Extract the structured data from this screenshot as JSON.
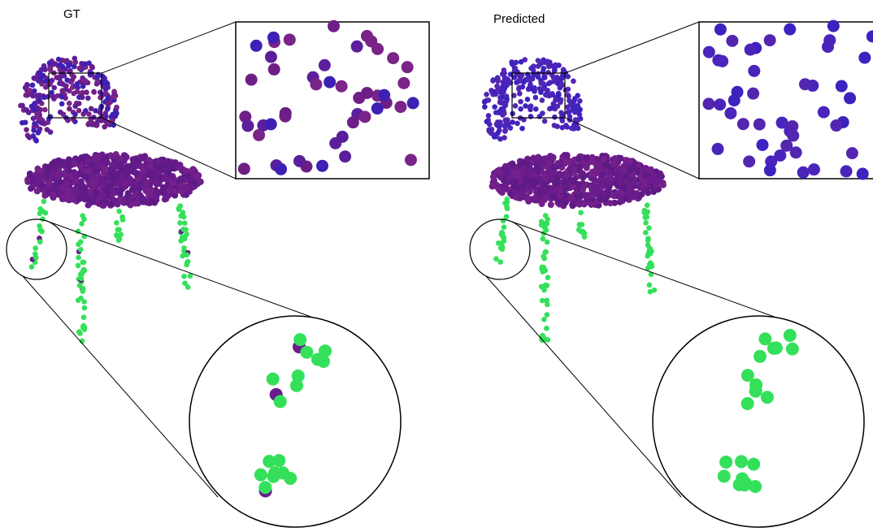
{
  "panels": [
    {
      "title": "GT"
    },
    {
      "title": "Predicted"
    }
  ]
}
